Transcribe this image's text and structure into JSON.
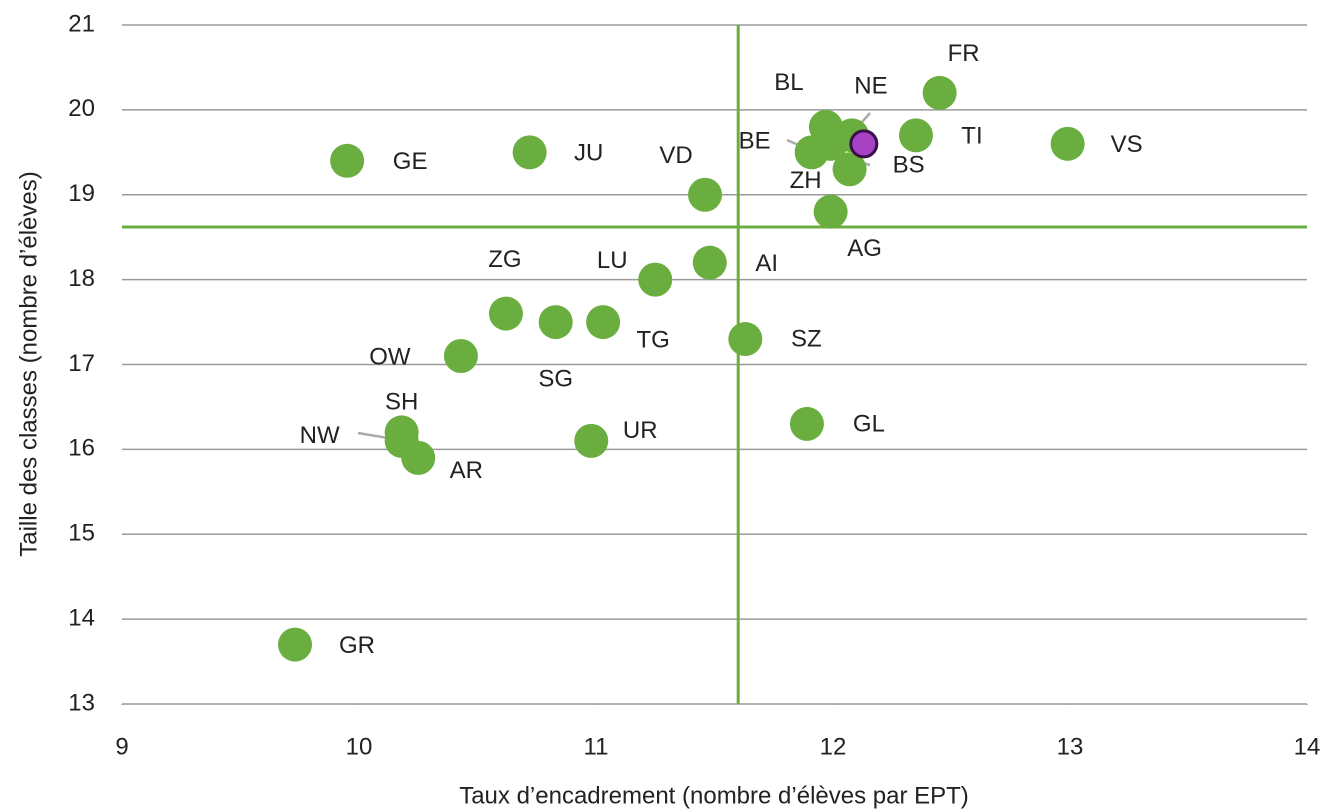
{
  "chart_data": {
    "type": "scatter",
    "xlabel": "Taux d’encadrement (nombre d’élèves par EPT)",
    "ylabel": "Taille des classes (nombre d’élèves)",
    "xlim": [
      9,
      14
    ],
    "xticks": [
      9,
      10,
      11,
      12,
      13,
      14
    ],
    "ylim": [
      13,
      21
    ],
    "yticks": [
      13,
      14,
      15,
      16,
      17,
      18,
      19,
      20,
      21
    ],
    "grid": true,
    "ref_lines": {
      "x": 11.6,
      "y": 18.62,
      "color": "#6aae3f"
    },
    "series": [
      {
        "color": "#6aae3f",
        "labels": [
          "GE",
          "JU",
          "VD",
          "FR",
          "TI",
          "VS",
          "BL",
          "BE",
          "NE",
          "BS",
          "ZH",
          "AG",
          "LU",
          "AI",
          "ZG",
          "SG",
          "TG",
          "SZ",
          "OW",
          "SH",
          "NW",
          "AR",
          "UR",
          "GL",
          "GR"
        ],
        "x": [
          9.95,
          10.72,
          11.46,
          12.45,
          12.35,
          12.99,
          11.97,
          11.91,
          12.08,
          12.07,
          11.99,
          11.99,
          11.25,
          11.48,
          10.62,
          10.83,
          11.03,
          11.63,
          10.43,
          10.18,
          10.18,
          10.25,
          10.98,
          11.89,
          9.73
        ],
        "values": [
          19.4,
          19.5,
          19.0,
          20.2,
          19.7,
          19.6,
          19.8,
          19.5,
          19.7,
          19.3,
          19.6,
          18.8,
          18.0,
          18.2,
          17.6,
          17.5,
          17.5,
          17.3,
          17.1,
          16.2,
          16.1,
          15.9,
          16.1,
          16.3,
          13.7
        ]
      },
      {
        "color": "#a742c5",
        "x": [
          12.13
        ],
        "values": [
          19.6
        ]
      }
    ]
  }
}
